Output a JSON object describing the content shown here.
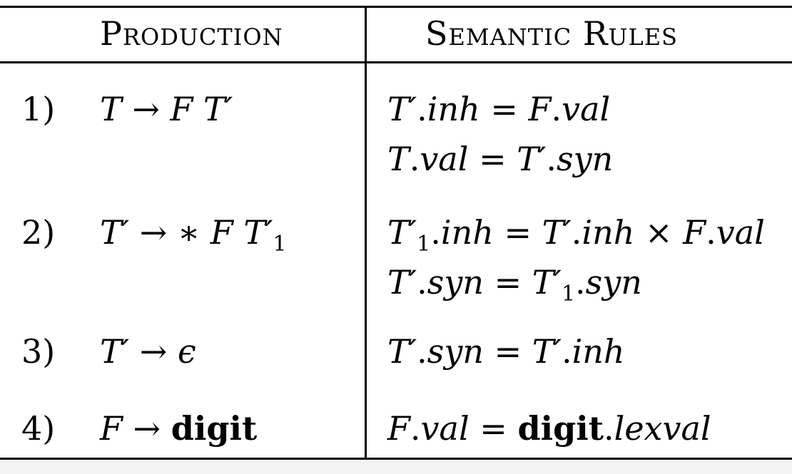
{
  "table": {
    "headers": {
      "production": "Production",
      "semantic_rules": "Semantic Rules"
    },
    "rows": [
      {
        "number": "1)",
        "production": "T → F T′",
        "rules": [
          "T′.inh = F.val",
          "T.val = T′.syn"
        ]
      },
      {
        "number": "2)",
        "production": "T′ → ∗ F T′₁",
        "rules": [
          "T′₁.inh = T′.inh × F.val",
          "T′.syn = T′₁.syn"
        ]
      },
      {
        "number": "3)",
        "production": "T′ → ϵ",
        "rules": [
          "T′.syn = T′.inh"
        ]
      },
      {
        "number": "4)",
        "production": "F → digit",
        "rules": [
          "F.val = digit.lexval"
        ]
      }
    ]
  }
}
